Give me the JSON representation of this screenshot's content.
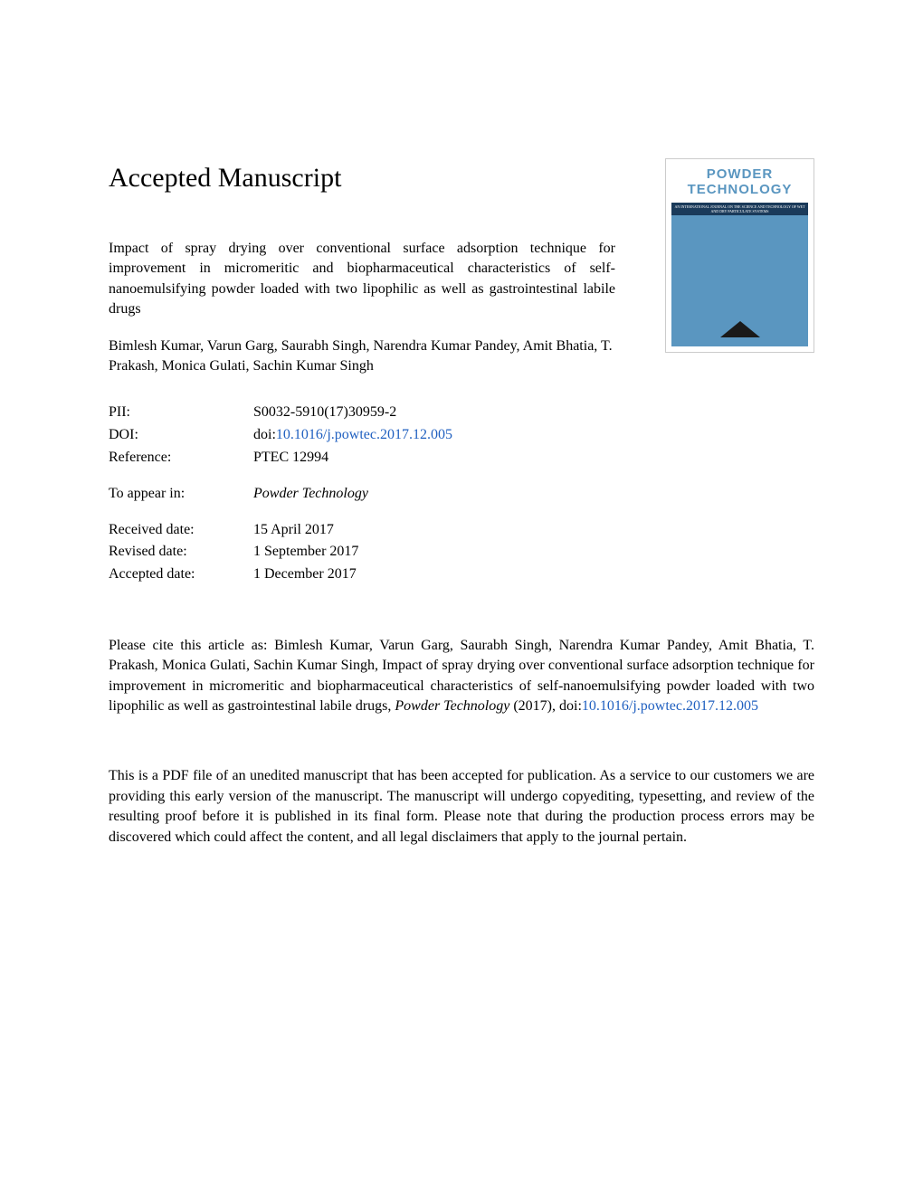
{
  "heading": "Accepted Manuscript",
  "journal_cover": {
    "name_line1": "POWDER",
    "name_line2": "TECHNOLOGY",
    "subtitle": "AN INTERNATIONAL JOURNAL ON THE SCIENCE AND TECHNOLOGY OF WET AND DRY PARTICULATE SYSTEMS",
    "bg_color": "#5a96c0",
    "bar_color": "#1a3a5a",
    "triangle_color": "#1a1a1a"
  },
  "paper_title": "Impact of spray drying over conventional surface adsorption technique for improvement in micromeritic and biopharmaceutical characteristics of self-nanoemulsifying powder loaded with two lipophilic as well as gastrointestinal labile drugs",
  "authors": "Bimlesh Kumar, Varun Garg, Saurabh Singh, Narendra Kumar Pandey, Amit Bhatia, T. Prakash, Monica Gulati, Sachin Kumar Singh",
  "meta": {
    "pii_label": "PII:",
    "pii_value": "S0032-5910(17)30959-2",
    "doi_label": "DOI:",
    "doi_prefix": "doi:",
    "doi_link": "10.1016/j.powtec.2017.12.005",
    "reference_label": "Reference:",
    "reference_value": "PTEC 12994",
    "appear_label": "To appear in:",
    "appear_value": "Powder Technology",
    "received_label": "Received date:",
    "received_value": "15 April 2017",
    "revised_label": "Revised date:",
    "revised_value": "1 September 2017",
    "accepted_label": "Accepted date:",
    "accepted_value": "1 December 2017"
  },
  "citation": {
    "prefix": "Please cite this article as: Bimlesh Kumar, Varun Garg, Saurabh Singh, Narendra Kumar Pandey, Amit Bhatia, T. Prakash, Monica Gulati, Sachin Kumar Singh, Impact of spray drying over conventional surface adsorption technique for improvement in micromeritic and biopharmaceutical characteristics of self-nanoemulsifying powder loaded with two lipophilic as well as gastrointestinal labile drugs, ",
    "journal": "Powder Technology",
    "year": " (2017), doi:",
    "doi_link": "10.1016/j.powtec.2017.12.005"
  },
  "disclaimer": "This is a PDF file of an unedited manuscript that has been accepted for publication. As a service to our customers we are providing this early version of the manuscript. The manuscript will undergo copyediting, typesetting, and review of the resulting proof before it is published in its final form. Please note that during the production process errors may be discovered which could affect the content, and all legal disclaimers that apply to the journal pertain.",
  "colors": {
    "text": "#000000",
    "link": "#2060c0",
    "background": "#ffffff"
  },
  "typography": {
    "heading_fontsize": 30,
    "body_fontsize": 16,
    "font_family": "Georgia serif"
  }
}
